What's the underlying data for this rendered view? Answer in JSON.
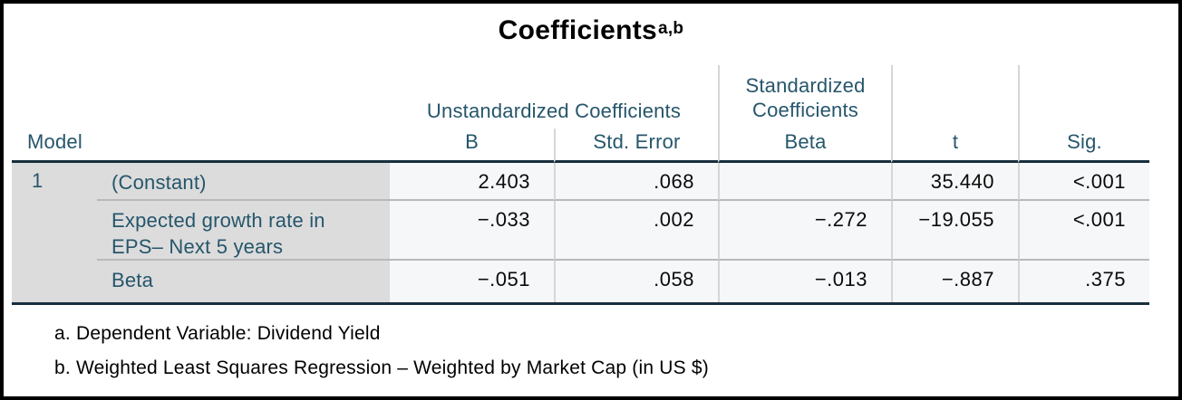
{
  "title": {
    "text": "Coefficients",
    "superscript": "a,b"
  },
  "table": {
    "model_header": "Model",
    "spanner_unstandardized": "Unstandardized Coefficients",
    "spanner_standardized": "Standardized Coefficients",
    "columns": {
      "b": "B",
      "std_error": "Std. Error",
      "beta": "Beta",
      "t": "t",
      "sig": "Sig."
    },
    "model_number": "1",
    "rows": [
      {
        "label": "(Constant)",
        "b": "2.403",
        "std_error": ".068",
        "beta": "",
        "t": "35.440",
        "sig": "<.001"
      },
      {
        "label": "Expected growth rate in EPS– Next 5 years",
        "b": "−.033",
        "std_error": ".002",
        "beta": "−.272",
        "t": "−19.055",
        "sig": "<.001"
      },
      {
        "label": "Beta",
        "b": "−.051",
        "std_error": ".058",
        "beta": "−.013",
        "t": "−.887",
        "sig": ".375"
      }
    ]
  },
  "footnotes": [
    "a. Dependent Variable: Dividend Yield",
    "b. Weighted Least Squares Regression – Weighted by Market Cap (in US $)"
  ],
  "colors": {
    "header_text": "#26566b",
    "dark_rule": "#182f3e",
    "label_background": "#dcdcdc",
    "data_background": "#f6f7f9",
    "row_separator": "#b9b9b9",
    "column_divider": "#d6d6d6",
    "outer_border": "#000000"
  }
}
